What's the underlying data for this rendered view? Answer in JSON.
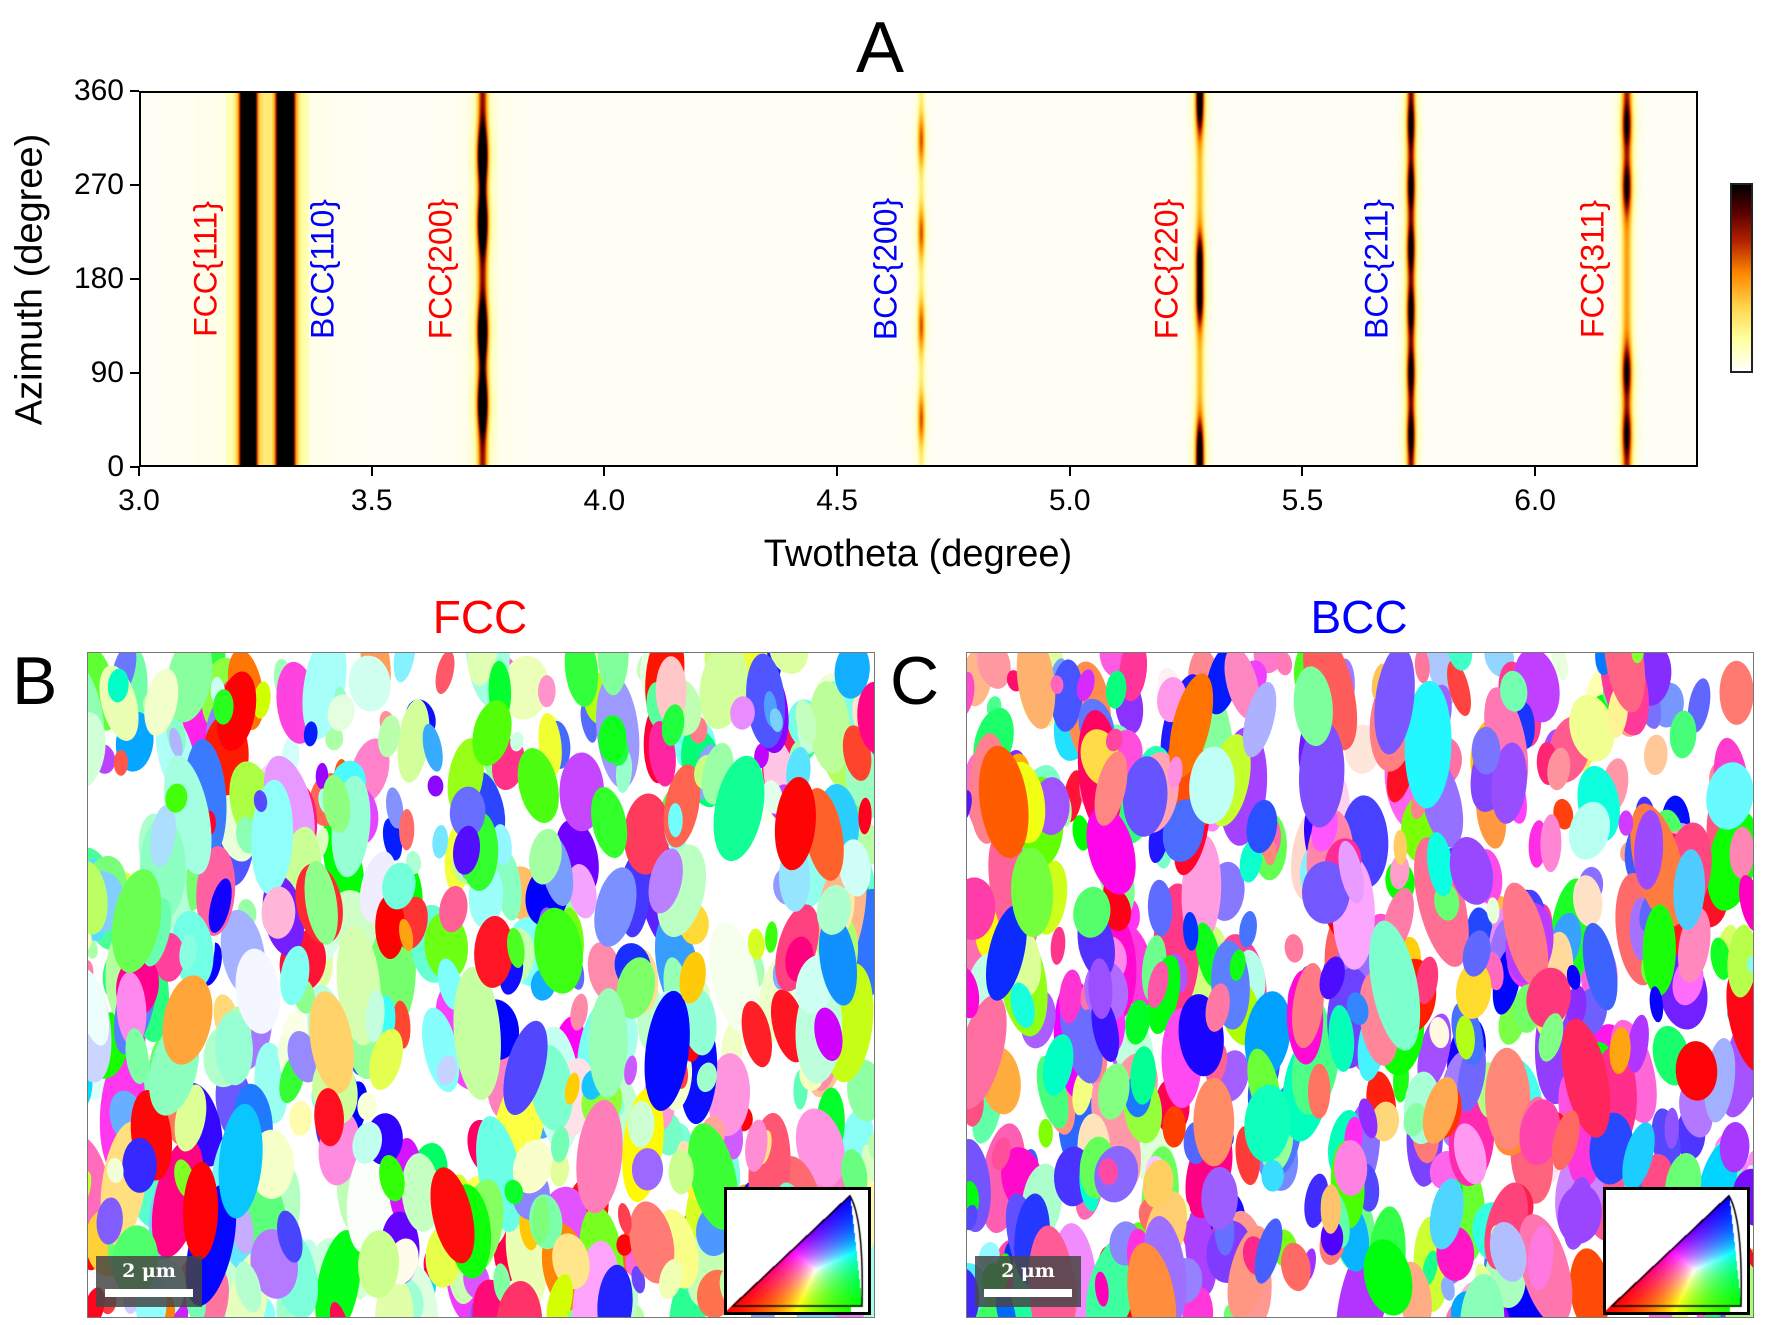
{
  "panel_a": {
    "letter": "A"
  },
  "panel_b": {
    "letter": "B",
    "title": "FCC",
    "title_color": "#ff0000",
    "scale_bar": "2 μm"
  },
  "panel_c": {
    "letter": "C",
    "title": "BCC",
    "title_color": "#0000ff",
    "scale_bar": "2 μm"
  },
  "chart_data": {
    "type": "heatmap",
    "xlabel": "Twotheta (degree)",
    "ylabel": "Azimuth (degree)",
    "xlim": [
      3.0,
      6.35
    ],
    "ylim": [
      0,
      360
    ],
    "xticks": [
      "3.0",
      "3.5",
      "4.0",
      "4.5",
      "5.0",
      "5.5",
      "6.0"
    ],
    "yticks": [
      "0",
      "90",
      "180",
      "270",
      "360"
    ],
    "colormap": "white-yellow-orange-red-black (afmhot reversed)",
    "colorbar": {
      "position": "right",
      "tick_labels": false
    },
    "peaks": [
      {
        "label": "FCC{111}",
        "phase": "FCC",
        "color": "#ff0000",
        "two_theta": 3.23,
        "relative_intensity": "very strong",
        "strong_azimuths": []
      },
      {
        "label": "BCC{110}",
        "phase": "BCC",
        "color": "#0000ff",
        "two_theta": 3.31,
        "relative_intensity": "very strong",
        "strong_azimuths": []
      },
      {
        "label": "FCC{200}",
        "phase": "FCC",
        "color": "#ff0000",
        "two_theta": 3.735,
        "relative_intensity": "strong",
        "strong_azimuths": [
          60,
          130,
          235,
          300
        ]
      },
      {
        "label": "BCC{200}",
        "phase": "BCC",
        "color": "#0000ff",
        "two_theta": 4.68,
        "relative_intensity": "weak",
        "strong_azimuths": [
          45,
          135,
          225,
          315
        ]
      },
      {
        "label": "FCC{220}",
        "phase": "FCC",
        "color": "#ff0000",
        "two_theta": 5.28,
        "relative_intensity": "medium",
        "strong_azimuths": [
          20,
          160,
          200,
          345
        ]
      },
      {
        "label": "BCC{211}",
        "phase": "BCC",
        "color": "#0000ff",
        "two_theta": 5.735,
        "relative_intensity": "medium",
        "strong_azimuths": [
          30,
          90,
          150,
          210,
          270,
          330
        ]
      },
      {
        "label": "FCC{311}",
        "phase": "FCC",
        "color": "#ff0000",
        "two_theta": 6.2,
        "relative_intensity": "medium",
        "strong_azimuths": [
          30,
          90,
          270,
          330
        ]
      }
    ]
  }
}
